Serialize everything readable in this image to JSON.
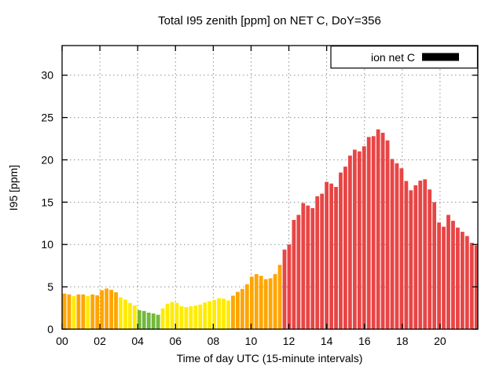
{
  "chart_data": {
    "type": "bar",
    "title": "Total I95 zenith [ppm] on NET C, DoY=356",
    "xlabel": "Time of day UTC (15-minute intervals)",
    "ylabel": "I95 [ppm]",
    "legend_label": "ion net C",
    "legend_swatch_color": "#000000",
    "ylim": [
      0,
      33.5
    ],
    "y_ticks": [
      0,
      5,
      10,
      15,
      20,
      25,
      30
    ],
    "x_tick_hours": [
      0,
      2,
      4,
      6,
      8,
      10,
      12,
      14,
      16,
      18,
      20
    ],
    "x_tick_labels": [
      "00",
      "02",
      "04",
      "06",
      "08",
      "10",
      "12",
      "14",
      "16",
      "18",
      "20"
    ],
    "xlim_hours": [
      0,
      22
    ],
    "grid": true,
    "legend_position": "top-right",
    "palette": {
      "o": "#ffa500",
      "y": "#ffeb00",
      "g": "#72b93c",
      "r": "#e84545"
    },
    "categories": [
      "00:00",
      "00:15",
      "00:30",
      "00:45",
      "01:00",
      "01:15",
      "01:30",
      "01:45",
      "02:00",
      "02:15",
      "02:30",
      "02:45",
      "03:00",
      "03:15",
      "03:30",
      "03:45",
      "04:00",
      "04:15",
      "04:30",
      "04:45",
      "05:00",
      "05:15",
      "05:30",
      "05:45",
      "06:00",
      "06:15",
      "06:30",
      "06:45",
      "07:00",
      "07:15",
      "07:30",
      "07:45",
      "08:00",
      "08:15",
      "08:30",
      "08:45",
      "09:00",
      "09:15",
      "09:30",
      "09:45",
      "10:00",
      "10:15",
      "10:30",
      "10:45",
      "11:00",
      "11:15",
      "11:30",
      "11:45",
      "12:00",
      "12:15",
      "12:30",
      "12:45",
      "13:00",
      "13:15",
      "13:30",
      "13:45",
      "14:00",
      "14:15",
      "14:30",
      "14:45",
      "15:00",
      "15:15",
      "15:30",
      "15:45",
      "16:00",
      "16:15",
      "16:30",
      "16:45",
      "17:00",
      "17:15",
      "17:30",
      "17:45",
      "18:00",
      "18:15",
      "18:30",
      "18:45",
      "19:00",
      "19:15",
      "19:30",
      "19:45",
      "20:00",
      "20:15",
      "20:30",
      "20:45",
      "21:00",
      "21:15",
      "21:30",
      "21:45",
      "22:00"
    ],
    "values": [
      4.2,
      4.1,
      3.9,
      4.1,
      4.1,
      3.9,
      4.1,
      4.0,
      4.6,
      4.8,
      4.65,
      4.35,
      3.75,
      3.5,
      3.1,
      2.8,
      2.25,
      2.15,
      1.95,
      1.85,
      1.7,
      2.45,
      3.0,
      3.2,
      3.1,
      2.7,
      2.6,
      2.7,
      2.8,
      2.9,
      3.15,
      3.3,
      3.45,
      3.65,
      3.6,
      3.4,
      3.95,
      4.4,
      4.75,
      5.3,
      6.2,
      6.5,
      6.3,
      5.9,
      6.0,
      6.5,
      7.6,
      9.4,
      10.0,
      12.9,
      13.5,
      14.9,
      14.6,
      14.3,
      15.7,
      16.0,
      17.4,
      17.2,
      16.8,
      18.5,
      19.2,
      20.5,
      21.2,
      21.0,
      21.6,
      22.7,
      22.8,
      23.6,
      23.2,
      22.3,
      20.1,
      19.6,
      19.0,
      17.5,
      16.4,
      17.0,
      17.55,
      17.7,
      16.5,
      15.0,
      12.6,
      12.1,
      13.5,
      12.8,
      12.0,
      11.5,
      11.0,
      10.2,
      9.9
    ],
    "bar_colors": [
      "o",
      "o",
      "y",
      "o",
      "o",
      "y",
      "o",
      "o",
      "o",
      "o",
      "o",
      "o",
      "y",
      "y",
      "y",
      "y",
      "g",
      "g",
      "g",
      "g",
      "g",
      "y",
      "y",
      "y",
      "y",
      "y",
      "y",
      "y",
      "y",
      "y",
      "y",
      "y",
      "y",
      "y",
      "y",
      "y",
      "o",
      "o",
      "o",
      "o",
      "o",
      "o",
      "o",
      "o",
      "o",
      "o",
      "o",
      "r",
      "r",
      "r",
      "r",
      "r",
      "r",
      "r",
      "r",
      "r",
      "r",
      "r",
      "r",
      "r",
      "r",
      "r",
      "r",
      "r",
      "r",
      "r",
      "r",
      "r",
      "r",
      "r",
      "r",
      "r",
      "r",
      "r",
      "r",
      "r",
      "r",
      "r",
      "r",
      "r",
      "r",
      "r",
      "r",
      "r",
      "r",
      "r",
      "r",
      "r",
      "r"
    ]
  }
}
